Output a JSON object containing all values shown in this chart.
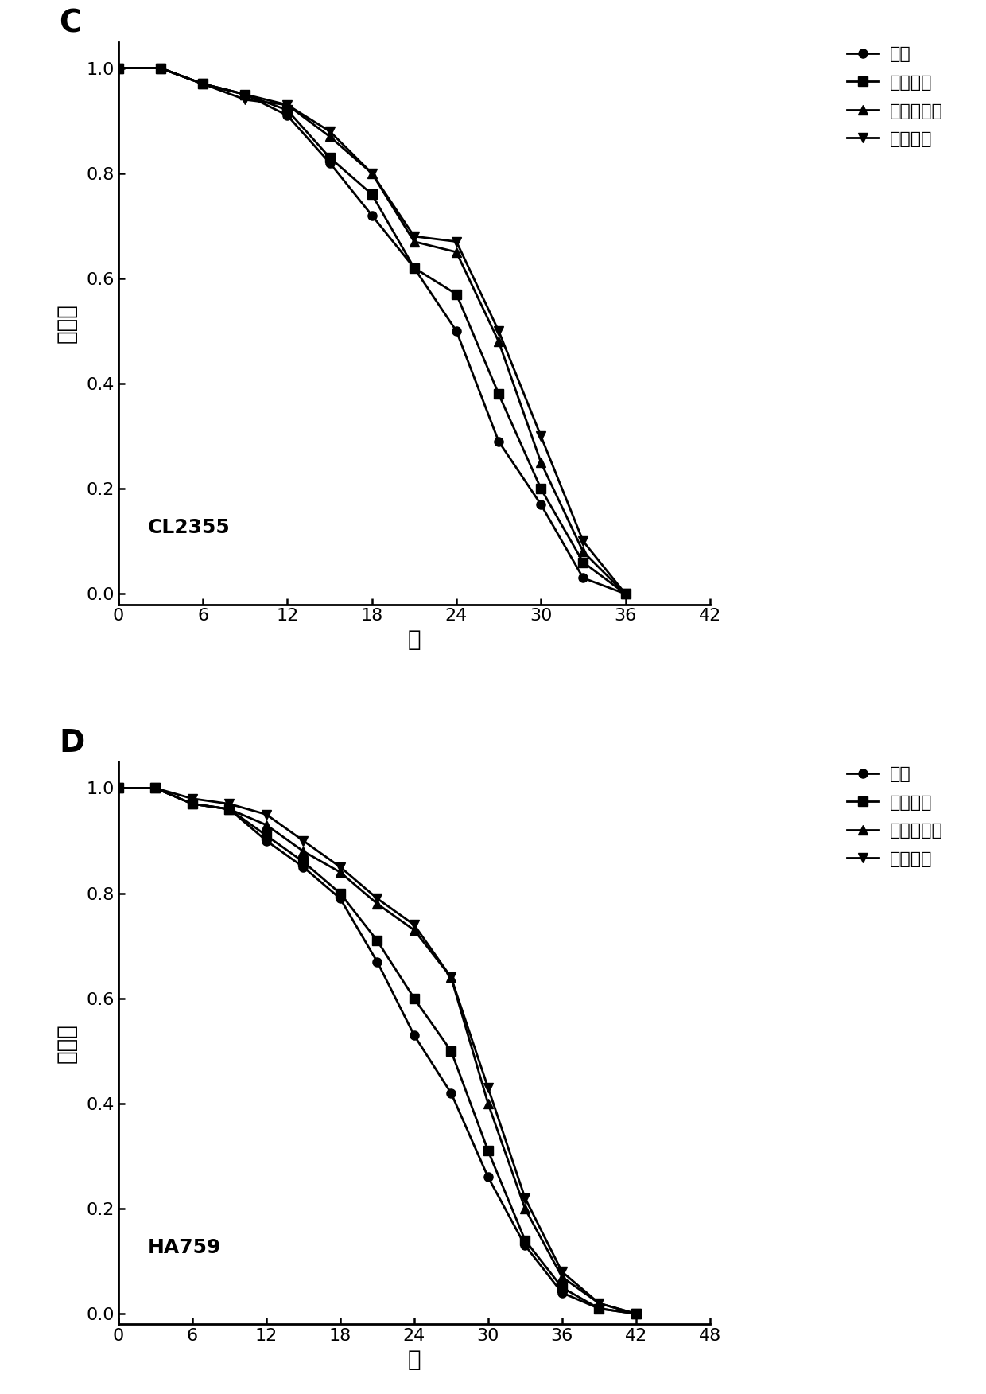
{
  "panel_C": {
    "label": "C",
    "strain": "CL2355",
    "xlim": [
      0,
      42
    ],
    "xticks": [
      0,
      6,
      12,
      18,
      24,
      30,
      36,
      42
    ],
    "ylim": [
      -0.02,
      1.05
    ],
    "yticks": [
      0.0,
      0.2,
      0.4,
      0.6,
      0.8,
      1.0
    ],
    "series": {
      "对照": {
        "x": [
          0,
          3,
          6,
          9,
          12,
          15,
          18,
          21,
          24,
          27,
          30,
          33,
          36
        ],
        "y": [
          1.0,
          1.0,
          0.97,
          0.95,
          0.91,
          0.82,
          0.72,
          0.62,
          0.5,
          0.29,
          0.17,
          0.03,
          0.0
        ]
      },
      "人参多糖": {
        "x": [
          0,
          3,
          6,
          9,
          12,
          15,
          18,
          21,
          24,
          27,
          30,
          33,
          36
        ],
        "y": [
          1.0,
          1.0,
          0.97,
          0.95,
          0.92,
          0.83,
          0.76,
          0.62,
          0.57,
          0.38,
          0.2,
          0.06,
          0.0
        ]
      },
      "何首乌多糖": {
        "x": [
          0,
          3,
          6,
          9,
          12,
          15,
          18,
          21,
          24,
          27,
          30,
          33,
          36
        ],
        "y": [
          1.0,
          1.0,
          0.97,
          0.95,
          0.93,
          0.87,
          0.8,
          0.67,
          0.65,
          0.48,
          0.25,
          0.08,
          0.0
        ]
      },
      "复合多糖": {
        "x": [
          0,
          3,
          6,
          9,
          12,
          15,
          18,
          21,
          24,
          27,
          30,
          33,
          36
        ],
        "y": [
          1.0,
          1.0,
          0.97,
          0.94,
          0.93,
          0.88,
          0.8,
          0.68,
          0.67,
          0.5,
          0.3,
          0.1,
          0.0
        ]
      }
    }
  },
  "panel_D": {
    "label": "D",
    "strain": "HA759",
    "xlim": [
      0,
      48
    ],
    "xticks": [
      0,
      6,
      12,
      18,
      24,
      30,
      36,
      42,
      48
    ],
    "ylim": [
      -0.02,
      1.05
    ],
    "yticks": [
      0.0,
      0.2,
      0.4,
      0.6,
      0.8,
      1.0
    ],
    "series": {
      "对照": {
        "x": [
          0,
          3,
          6,
          9,
          12,
          15,
          18,
          21,
          24,
          27,
          30,
          33,
          36,
          39,
          42
        ],
        "y": [
          1.0,
          1.0,
          0.97,
          0.96,
          0.9,
          0.85,
          0.79,
          0.67,
          0.53,
          0.42,
          0.26,
          0.13,
          0.04,
          0.01,
          0.0
        ]
      },
      "人参多糖": {
        "x": [
          0,
          3,
          6,
          9,
          12,
          15,
          18,
          21,
          24,
          27,
          30,
          33,
          36,
          39,
          42
        ],
        "y": [
          1.0,
          1.0,
          0.97,
          0.96,
          0.91,
          0.86,
          0.8,
          0.71,
          0.6,
          0.5,
          0.31,
          0.14,
          0.05,
          0.01,
          0.0
        ]
      },
      "何首乌多糖": {
        "x": [
          0,
          3,
          6,
          9,
          12,
          15,
          18,
          21,
          24,
          27,
          30,
          33,
          36,
          39,
          42
        ],
        "y": [
          1.0,
          1.0,
          0.97,
          0.96,
          0.93,
          0.88,
          0.84,
          0.78,
          0.73,
          0.64,
          0.4,
          0.2,
          0.07,
          0.02,
          0.0
        ]
      },
      "复合多糖": {
        "x": [
          0,
          3,
          6,
          9,
          12,
          15,
          18,
          21,
          24,
          27,
          30,
          33,
          36,
          39,
          42
        ],
        "y": [
          1.0,
          1.0,
          0.98,
          0.97,
          0.95,
          0.9,
          0.85,
          0.79,
          0.74,
          0.64,
          0.43,
          0.22,
          0.08,
          0.02,
          0.0
        ]
      }
    }
  },
  "markers": [
    "o",
    "s",
    "^",
    "v"
  ],
  "line_color": "#000000",
  "marker_size": 8,
  "line_width": 2.0,
  "ylabel": "存活率",
  "xlabel": "天",
  "background_color": "#ffffff",
  "font_size": 16,
  "label_fontsize": 20,
  "panel_label_fontsize": 28,
  "strain_fontsize": 18
}
